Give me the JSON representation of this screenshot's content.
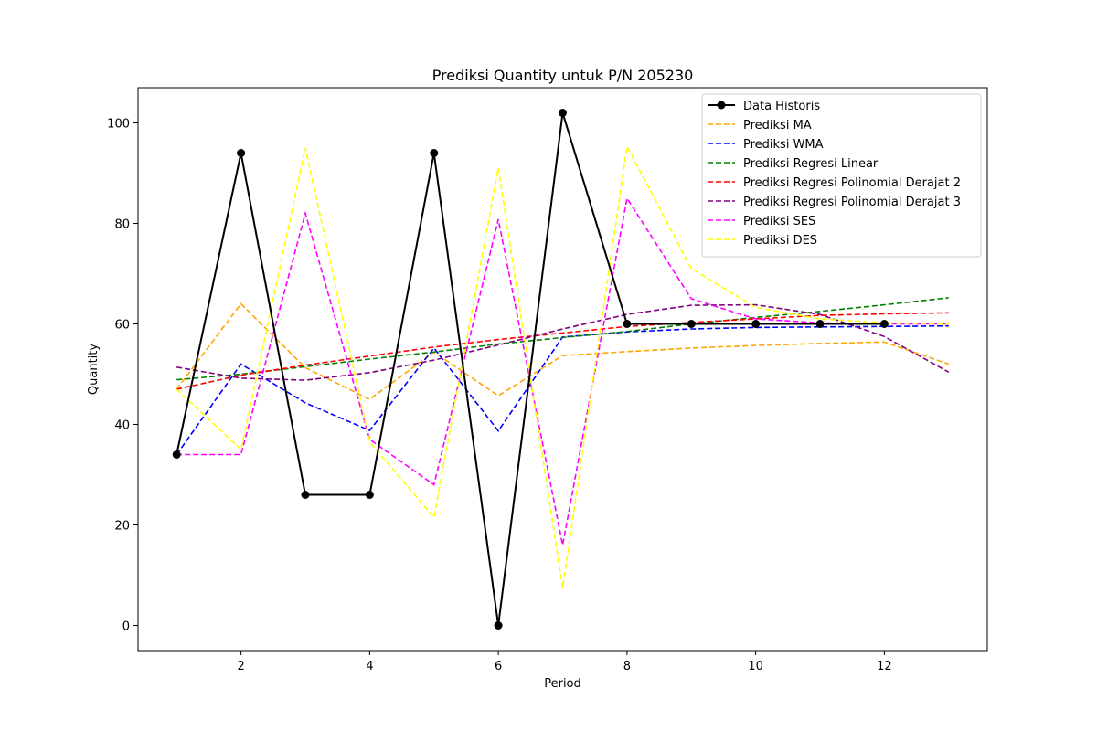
{
  "chart_data": {
    "type": "line",
    "title": "Prediksi Quantity untuk P/N 205230",
    "xlabel": "Period",
    "ylabel": "Quantity",
    "xlim": [
      0.4,
      13.6
    ],
    "ylim": [
      -5,
      107
    ],
    "xticks": [
      2,
      4,
      6,
      8,
      10,
      12
    ],
    "yticks": [
      0,
      20,
      40,
      60,
      80,
      100
    ],
    "grid": false,
    "legend_position": "top-right",
    "series": [
      {
        "name": "Data Historis",
        "color": "#000000",
        "style": "solid",
        "marker": "circle",
        "x": [
          1,
          2,
          3,
          4,
          5,
          6,
          7,
          8,
          9,
          10,
          11,
          12
        ],
        "y": [
          34,
          94,
          26,
          26,
          94,
          0,
          102,
          60,
          60,
          60,
          60,
          60
        ]
      },
      {
        "name": "Prediksi MA",
        "color": "#ffa500",
        "style": "dashed",
        "x": [
          1,
          2,
          3,
          4,
          5,
          6,
          7,
          8,
          9,
          10,
          11,
          12,
          13
        ],
        "y": [
          47,
          64,
          51.3,
          45,
          54.4,
          45.7,
          53.7,
          54.5,
          55.2,
          55.7,
          56.1,
          56.4,
          52
        ]
      },
      {
        "name": "Prediksi WMA",
        "color": "#0000ff",
        "style": "dashed",
        "x": [
          1,
          2,
          3,
          4,
          5,
          6,
          7,
          8,
          9,
          10,
          11,
          12,
          13
        ],
        "y": [
          34,
          52,
          44.3,
          38.8,
          55.2,
          38.7,
          57.4,
          58.4,
          59,
          59.3,
          59.4,
          59.5,
          59.6
        ]
      },
      {
        "name": "Prediksi Regresi Linear",
        "color": "#008000",
        "style": "dashed",
        "x": [
          1,
          2,
          3,
          4,
          5,
          6,
          7,
          8,
          9,
          10,
          11,
          12,
          13
        ],
        "y": [
          48.9,
          50,
          51.5,
          53,
          54.4,
          56,
          57.3,
          58.5,
          60,
          61.3,
          62.5,
          63.8,
          65.2
        ]
      },
      {
        "name": "Prediksi Regresi Polinomial Derajat 2",
        "color": "#ff0000",
        "style": "dashed",
        "x": [
          1,
          2,
          3,
          4,
          5,
          6,
          7,
          8,
          9,
          10,
          11,
          12,
          13
        ],
        "y": [
          47,
          49.8,
          51.8,
          53.6,
          55.4,
          56.9,
          58.2,
          59.5,
          60.3,
          61,
          61.7,
          62,
          62.2
        ]
      },
      {
        "name": "Prediksi Regresi Polinomial Derajat 3",
        "color": "#800080",
        "style": "dashed",
        "x": [
          1,
          2,
          3,
          4,
          5,
          6,
          7,
          8,
          9,
          10,
          11,
          12,
          13
        ],
        "y": [
          51.4,
          49.2,
          48.8,
          50.3,
          52.8,
          55.8,
          59,
          61.9,
          63.7,
          63.8,
          61.9,
          57.5,
          50.4
        ]
      },
      {
        "name": "Prediksi SES",
        "color": "#ff00ff",
        "style": "dashed",
        "x": [
          1,
          2,
          3,
          4,
          5,
          6,
          7,
          8,
          9,
          10,
          11,
          12,
          13
        ],
        "y": [
          34,
          34,
          82,
          37,
          28,
          80.8,
          16,
          85,
          65,
          61,
          60.2,
          60,
          60
        ]
      },
      {
        "name": "Prediksi DES",
        "color": "#ffff00",
        "style": "dashed",
        "x": [
          1,
          2,
          3,
          4,
          5,
          6,
          7,
          8,
          9,
          10,
          11,
          12,
          13
        ],
        "y": [
          47,
          35,
          95,
          36.5,
          21.5,
          91,
          7.5,
          95.3,
          71,
          63.3,
          61,
          60.2,
          60
        ]
      }
    ]
  }
}
